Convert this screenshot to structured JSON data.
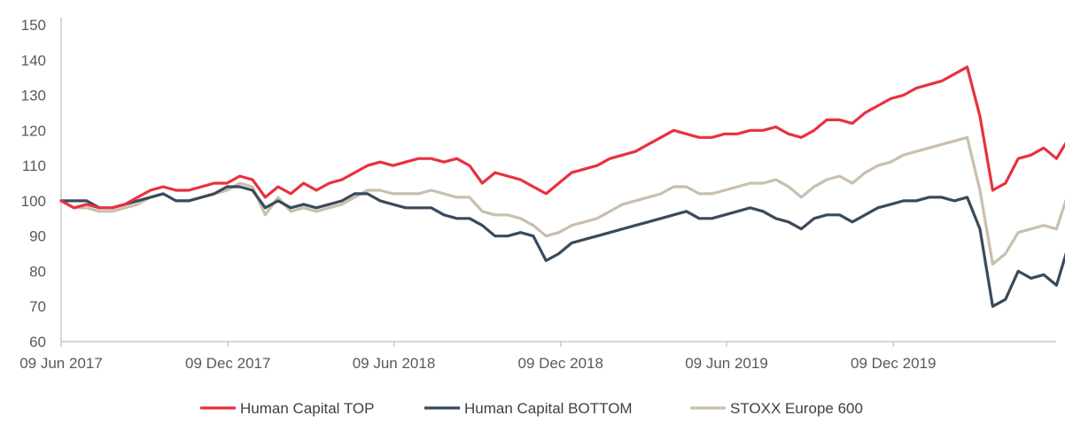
{
  "chart_data": {
    "type": "line",
    "title": "",
    "xlabel": "",
    "ylabel": "",
    "ylim": [
      60,
      150
    ],
    "yticks": [
      60,
      70,
      80,
      90,
      100,
      110,
      120,
      130,
      140,
      150
    ],
    "xticks": [
      "09 Jun 2017",
      "09 Dec 2017",
      "09 Jun 2018",
      "09 Dec 2018",
      "09 Jun 2019",
      "09 Dec 2019"
    ],
    "x_dates": [
      "2017-06-09",
      "2017-06-23",
      "2017-07-07",
      "2017-07-21",
      "2017-08-04",
      "2017-08-18",
      "2017-09-01",
      "2017-09-15",
      "2017-09-29",
      "2017-10-13",
      "2017-10-27",
      "2017-11-10",
      "2017-11-24",
      "2017-12-08",
      "2017-12-22",
      "2018-01-05",
      "2018-01-19",
      "2018-02-02",
      "2018-02-16",
      "2018-03-02",
      "2018-03-16",
      "2018-03-30",
      "2018-04-13",
      "2018-04-27",
      "2018-05-11",
      "2018-05-25",
      "2018-06-08",
      "2018-06-22",
      "2018-07-06",
      "2018-07-20",
      "2018-08-03",
      "2018-08-17",
      "2018-08-31",
      "2018-09-14",
      "2018-09-28",
      "2018-10-12",
      "2018-10-26",
      "2018-11-09",
      "2018-11-23",
      "2018-12-07",
      "2018-12-21",
      "2019-01-04",
      "2019-01-18",
      "2019-02-01",
      "2019-02-15",
      "2019-03-01",
      "2019-03-15",
      "2019-03-29",
      "2019-04-12",
      "2019-04-26",
      "2019-05-10",
      "2019-05-24",
      "2019-06-07",
      "2019-06-21",
      "2019-07-05",
      "2019-07-19",
      "2019-08-02",
      "2019-08-16",
      "2019-08-30",
      "2019-09-13",
      "2019-09-27",
      "2019-10-11",
      "2019-10-25",
      "2019-11-08",
      "2019-11-22",
      "2019-12-06",
      "2019-12-20",
      "2020-01-03",
      "2020-01-17",
      "2020-01-31",
      "2020-02-14",
      "2020-02-28",
      "2020-03-13",
      "2020-03-27",
      "2020-04-10",
      "2020-04-24",
      "2020-05-08",
      "2020-05-22",
      "2020-06-05",
      "2020-06-19"
    ],
    "series": [
      {
        "name": "Human Capital TOP",
        "color": "#e8313f",
        "values": [
          100,
          98,
          99,
          98,
          98,
          99,
          101,
          103,
          104,
          103,
          103,
          104,
          105,
          105,
          107,
          106,
          101,
          104,
          102,
          105,
          103,
          105,
          106,
          108,
          110,
          111,
          110,
          111,
          112,
          112,
          111,
          112,
          110,
          105,
          108,
          107,
          106,
          104,
          102,
          105,
          108,
          109,
          110,
          112,
          113,
          114,
          116,
          118,
          120,
          119,
          118,
          118,
          119,
          119,
          120,
          120,
          121,
          119,
          118,
          120,
          123,
          123,
          122,
          125,
          127,
          129,
          130,
          132,
          133,
          134,
          136,
          138,
          124,
          103,
          105,
          112,
          113,
          115,
          112,
          118
        ]
      },
      {
        "name": "Human Capital BOTTOM",
        "color": "#3a4a5b",
        "values": [
          100,
          100,
          100,
          98,
          98,
          99,
          100,
          101,
          102,
          100,
          100,
          101,
          102,
          104,
          104,
          103,
          98,
          100,
          98,
          99,
          98,
          99,
          100,
          102,
          102,
          100,
          99,
          98,
          98,
          98,
          96,
          95,
          95,
          93,
          90,
          90,
          91,
          90,
          83,
          85,
          88,
          89,
          90,
          91,
          92,
          93,
          94,
          95,
          96,
          97,
          95,
          95,
          96,
          97,
          98,
          97,
          95,
          94,
          92,
          95,
          96,
          96,
          94,
          96,
          98,
          99,
          100,
          100,
          101,
          101,
          100,
          101,
          92,
          70,
          72,
          80,
          78,
          79,
          76,
          88
        ]
      },
      {
        "name": "STOXX Europe 600",
        "color": "#c9bfae",
        "values": [
          100,
          98,
          98,
          97,
          97,
          98,
          99,
          101,
          102,
          100,
          100,
          101,
          102,
          103,
          105,
          104,
          96,
          101,
          97,
          98,
          97,
          98,
          99,
          101,
          103,
          103,
          102,
          102,
          102,
          103,
          102,
          101,
          101,
          97,
          96,
          96,
          95,
          93,
          90,
          91,
          93,
          94,
          95,
          97,
          99,
          100,
          101,
          102,
          104,
          104,
          102,
          102,
          103,
          104,
          105,
          105,
          106,
          104,
          101,
          104,
          106,
          107,
          105,
          108,
          110,
          111,
          113,
          114,
          115,
          116,
          117,
          118,
          103,
          82,
          85,
          91,
          92,
          93,
          92,
          103
        ]
      }
    ],
    "legend_position": "bottom",
    "grid": false
  }
}
